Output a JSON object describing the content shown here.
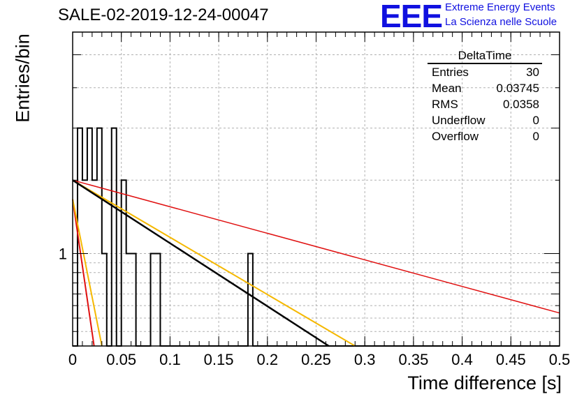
{
  "header": {
    "title": "SALE-02-2019-12-24-00047",
    "logo_text": "EEE",
    "logo_line1": "Extreme Energy Events",
    "logo_line2": "La Scienza nelle Scuole"
  },
  "stats_box": {
    "title": "DeltaTime",
    "rows": [
      {
        "label": "Entries",
        "value": "30"
      },
      {
        "label": "Mean",
        "value": "0.03745"
      },
      {
        "label": "RMS",
        "value": "0.0358"
      },
      {
        "label": "Underflow",
        "value": "0"
      },
      {
        "label": "Overflow",
        "value": "0"
      }
    ]
  },
  "chart_data": {
    "type": "histogram",
    "title": "SALE-02-2019-12-24-00047",
    "xlabel": "Time difference [s]",
    "ylabel": "Entries/bin",
    "xlim": [
      0,
      0.5
    ],
    "ylim": [
      0.6,
      3.4
    ],
    "log_y": true,
    "grid": true,
    "x_ticks": [
      "0",
      "0.05",
      "0.1",
      "0.15",
      "0.2",
      "0.25",
      "0.3",
      "0.35",
      "0.4",
      "0.45",
      "0.5"
    ],
    "y_ticks": [
      "1"
    ],
    "bins": [
      {
        "x0": 0.0,
        "x1": 0.005,
        "y": 0.6
      },
      {
        "x0": 0.005,
        "x1": 0.01,
        "y": 2.0
      },
      {
        "x0": 0.01,
        "x1": 0.015,
        "y": 1.5
      },
      {
        "x0": 0.015,
        "x1": 0.02,
        "y": 2.0
      },
      {
        "x0": 0.02,
        "x1": 0.025,
        "y": 1.5
      },
      {
        "x0": 0.025,
        "x1": 0.03,
        "y": 2.0
      },
      {
        "x0": 0.03,
        "x1": 0.035,
        "y": 1.0
      },
      {
        "x0": 0.035,
        "x1": 0.04,
        "y": 0.6
      },
      {
        "x0": 0.04,
        "x1": 0.045,
        "y": 2.0
      },
      {
        "x0": 0.045,
        "x1": 0.05,
        "y": 0.6
      },
      {
        "x0": 0.05,
        "x1": 0.055,
        "y": 1.5
      },
      {
        "x0": 0.055,
        "x1": 0.06,
        "y": 1.0
      },
      {
        "x0": 0.06,
        "x1": 0.065,
        "y": 1.0
      },
      {
        "x0": 0.065,
        "x1": 0.08,
        "y": 0.6
      },
      {
        "x0": 0.08,
        "x1": 0.09,
        "y": 1.0
      },
      {
        "x0": 0.09,
        "x1": 0.18,
        "y": 0.6
      },
      {
        "x0": 0.18,
        "x1": 0.185,
        "y": 1.0
      },
      {
        "x0": 0.185,
        "x1": 0.5,
        "y": 0.6
      }
    ],
    "fits": [
      {
        "color": "#e01010",
        "width": 1.5,
        "x0": 0.0,
        "y0": 1.5,
        "x1": 0.5,
        "y1": 0.72
      },
      {
        "color": "#e01010",
        "width": 2,
        "x0": 0.0,
        "y0": 1.35,
        "x1": 0.022,
        "y1": 0.6
      },
      {
        "color": "#f5b800",
        "width": 2,
        "x0": 0.0,
        "y0": 1.35,
        "x1": 0.03,
        "y1": 0.6
      },
      {
        "color": "#f5b800",
        "width": 2,
        "x0": 0.0,
        "y0": 1.5,
        "x1": 0.29,
        "y1": 0.6
      },
      {
        "color": "#000000",
        "width": 2.5,
        "x0": 0.0,
        "y0": 1.5,
        "x1": 0.263,
        "y1": 0.6
      }
    ]
  }
}
